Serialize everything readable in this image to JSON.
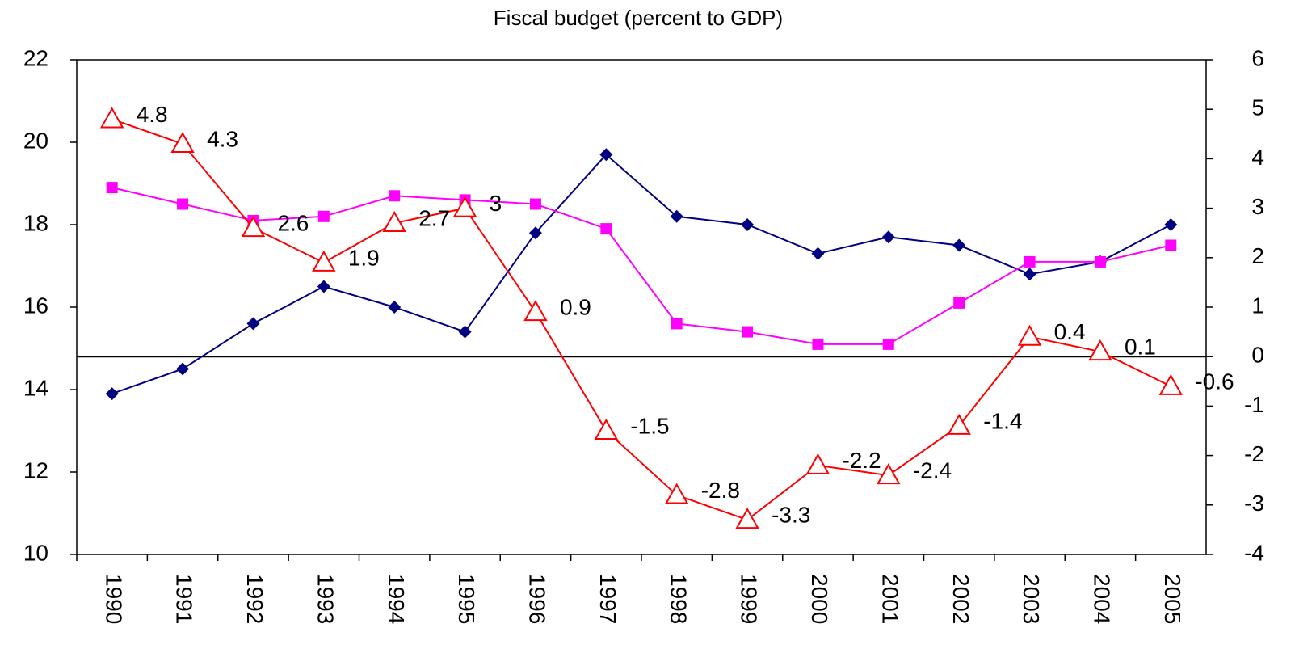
{
  "chart_data": {
    "type": "line",
    "title": "Fiscal budget (percent to GDP)",
    "categories": [
      "1990",
      "1991",
      "1992",
      "1993",
      "1994",
      "1995",
      "1996",
      "1997",
      "1998",
      "1999",
      "2000",
      "2001",
      "2002",
      "2003",
      "2004",
      "2005"
    ],
    "ylim": [
      10,
      22
    ],
    "yticks": [
      10,
      12,
      14,
      16,
      18,
      20,
      22
    ],
    "y2lim": [
      -4,
      6
    ],
    "y2ticks": [
      -4,
      -3,
      -2,
      -1,
      0,
      1,
      2,
      3,
      4,
      5,
      6
    ],
    "series": [
      {
        "color": "#000080",
        "marker": "diamond",
        "values": [
          13.9,
          14.5,
          15.6,
          16.5,
          16.0,
          15.4,
          17.8,
          19.7,
          18.2,
          18.0,
          17.3,
          17.7,
          17.5,
          16.8,
          17.1,
          18.0
        ]
      },
      {
        "color": "#ff00ff",
        "marker": "square",
        "values": [
          18.9,
          18.5,
          18.1,
          18.2,
          18.7,
          18.6,
          18.5,
          17.9,
          15.6,
          15.4,
          15.1,
          15.1,
          16.1,
          17.1,
          17.1,
          17.5
        ]
      },
      {
        "color": "#ff0000",
        "marker": "triangle",
        "axis": "y2",
        "data_labels": true,
        "values": [
          4.8,
          4.3,
          2.6,
          1.9,
          2.7,
          3,
          0.9,
          -1.5,
          -2.8,
          -3.3,
          -2.2,
          -2.4,
          -1.4,
          0.4,
          0.1,
          -0.6
        ]
      }
    ]
  }
}
